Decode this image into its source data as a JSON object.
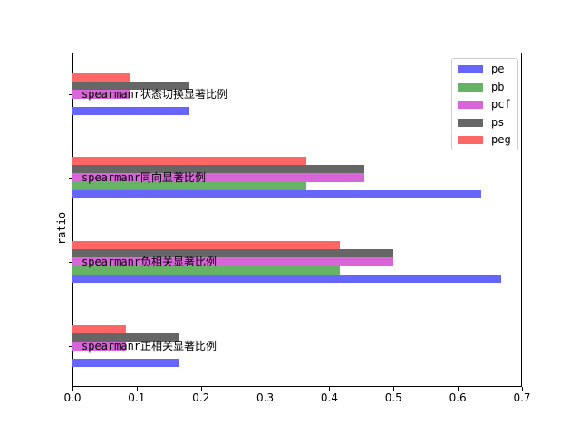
{
  "chart_data": {
    "type": "bar",
    "orientation": "horizontal",
    "title": "",
    "xlabel": "",
    "ylabel": "ratio",
    "xlim": [
      0.0,
      0.7
    ],
    "xticks": [
      "0.0",
      "0.1",
      "0.2",
      "0.3",
      "0.4",
      "0.5",
      "0.6",
      "0.7"
    ],
    "grid": false,
    "legend_position": "upper right",
    "categories": [
      "spearmanr正相关显著比例",
      "spearmanr负相关显著比例",
      "spearmanr同向显著比例",
      "spearmanr状态切换显著比例"
    ],
    "series": [
      {
        "name": "pe",
        "color": "#6666ff",
        "values": [
          0.167,
          0.667,
          0.636,
          0.182
        ]
      },
      {
        "name": "pb",
        "color": "#66b366",
        "values": [
          0.0,
          0.417,
          0.364,
          0.0
        ]
      },
      {
        "name": "pcf",
        "color": "#d966d9",
        "values": [
          0.083,
          0.5,
          0.455,
          0.091
        ]
      },
      {
        "name": "ps",
        "color": "#666666",
        "values": [
          0.167,
          0.5,
          0.455,
          0.182
        ]
      },
      {
        "name": "peg",
        "color": "#ff6666",
        "values": [
          0.083,
          0.417,
          0.364,
          0.091
        ]
      }
    ]
  }
}
